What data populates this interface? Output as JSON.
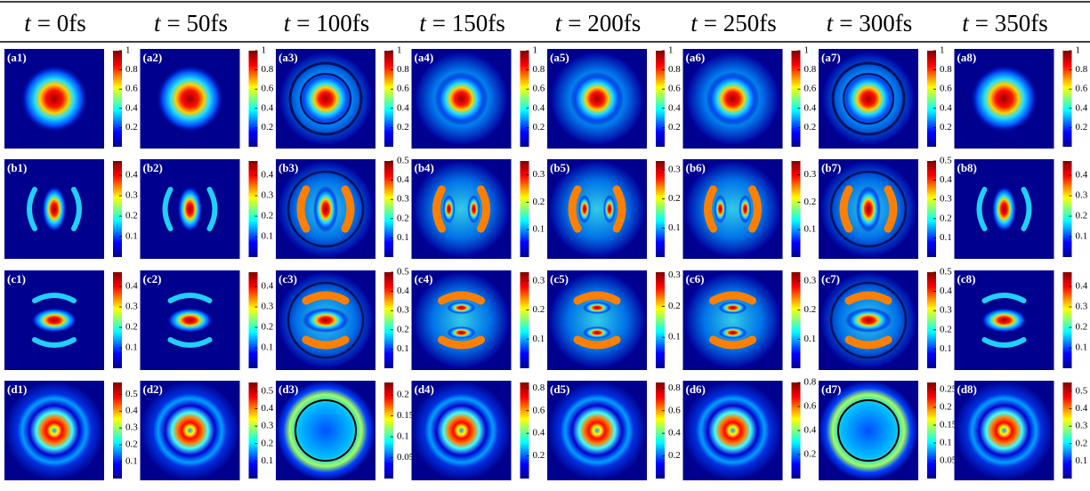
{
  "header": {
    "columns": [
      {
        "symbol": "t",
        "label": "= 0fs"
      },
      {
        "symbol": "t",
        "label": "= 50fs"
      },
      {
        "symbol": "t",
        "label": "= 100fs"
      },
      {
        "symbol": "t",
        "label": "= 150fs"
      },
      {
        "symbol": "t",
        "label": "= 200fs"
      },
      {
        "symbol": "t",
        "label": "= 250fs"
      },
      {
        "symbol": "t",
        "label": "= 300fs"
      },
      {
        "symbol": "t",
        "label": "= 350fs"
      }
    ]
  },
  "rows": [
    {
      "panels": [
        {
          "label": "(a1)",
          "colorbar": {
            "clim": [
              0,
              1
            ],
            "ticks": [
              0.2,
              0.4,
              0.6,
              0.8,
              1
            ]
          }
        },
        {
          "label": "(a2)",
          "colorbar": {
            "clim": [
              0,
              1
            ],
            "ticks": [
              0.2,
              0.4,
              0.6,
              0.8,
              1
            ]
          }
        },
        {
          "label": "(a3)",
          "colorbar": {
            "clim": [
              0,
              1
            ],
            "ticks": [
              0.2,
              0.4,
              0.6,
              0.8,
              1
            ]
          }
        },
        {
          "label": "(a4)",
          "colorbar": {
            "clim": [
              0,
              1
            ],
            "ticks": [
              0.2,
              0.4,
              0.6,
              0.8,
              1
            ]
          }
        },
        {
          "label": "(a5)",
          "colorbar": {
            "clim": [
              0,
              1
            ],
            "ticks": [
              0.2,
              0.4,
              0.6,
              0.8,
              1
            ]
          }
        },
        {
          "label": "(a6)",
          "colorbar": {
            "clim": [
              0,
              1
            ],
            "ticks": [
              0.2,
              0.4,
              0.6,
              0.8,
              1
            ]
          }
        },
        {
          "label": "(a7)",
          "colorbar": {
            "clim": [
              0,
              1
            ],
            "ticks": [
              0.2,
              0.4,
              0.6,
              0.8,
              1
            ]
          }
        },
        {
          "label": "(a8)",
          "colorbar": {
            "clim": [
              0,
              1
            ],
            "ticks": [
              0.2,
              0.4,
              0.6,
              0.8,
              1
            ]
          }
        }
      ]
    },
    {
      "panels": [
        {
          "label": "(b1)",
          "colorbar": {
            "clim": [
              0,
              0.47
            ],
            "ticks": [
              0.1,
              0.2,
              0.3,
              0.4
            ]
          }
        },
        {
          "label": "(b2)",
          "colorbar": {
            "clim": [
              0,
              0.47
            ],
            "ticks": [
              0.1,
              0.2,
              0.3,
              0.4
            ]
          }
        },
        {
          "label": "(b3)",
          "colorbar": {
            "clim": [
              0,
              0.5
            ],
            "ticks": [
              0.1,
              0.2,
              0.3,
              0.4,
              0.5
            ]
          }
        },
        {
          "label": "(b4)",
          "colorbar": {
            "clim": [
              0,
              0.35
            ],
            "ticks": [
              0.1,
              0.2,
              0.3
            ]
          }
        },
        {
          "label": "(b5)",
          "colorbar": {
            "clim": [
              0,
              0.33
            ],
            "ticks": [
              0.1,
              0.2,
              0.3
            ]
          }
        },
        {
          "label": "(b6)",
          "colorbar": {
            "clim": [
              0,
              0.35
            ],
            "ticks": [
              0.1,
              0.2,
              0.3
            ]
          }
        },
        {
          "label": "(b7)",
          "colorbar": {
            "clim": [
              0,
              0.5
            ],
            "ticks": [
              0.1,
              0.2,
              0.3,
              0.4,
              0.5
            ]
          }
        },
        {
          "label": "(b8)",
          "colorbar": {
            "clim": [
              0,
              0.47
            ],
            "ticks": [
              0.1,
              0.2,
              0.3,
              0.4
            ]
          }
        }
      ]
    },
    {
      "panels": [
        {
          "label": "(c1)",
          "colorbar": {
            "clim": [
              0,
              0.47
            ],
            "ticks": [
              0.1,
              0.2,
              0.3,
              0.4
            ]
          }
        },
        {
          "label": "(c2)",
          "colorbar": {
            "clim": [
              0,
              0.47
            ],
            "ticks": [
              0.1,
              0.2,
              0.3,
              0.4
            ]
          }
        },
        {
          "label": "(c3)",
          "colorbar": {
            "clim": [
              0,
              0.5
            ],
            "ticks": [
              0.1,
              0.2,
              0.3,
              0.4,
              0.5
            ]
          }
        },
        {
          "label": "(c4)",
          "colorbar": {
            "clim": [
              0,
              0.33
            ],
            "ticks": [
              0.1,
              0.2,
              0.3
            ]
          }
        },
        {
          "label": "(c5)",
          "colorbar": {
            "clim": [
              0,
              0.31
            ],
            "ticks": [
              0.1,
              0.2,
              0.3
            ]
          }
        },
        {
          "label": "(c6)",
          "colorbar": {
            "clim": [
              0,
              0.33
            ],
            "ticks": [
              0.1,
              0.2,
              0.3
            ]
          }
        },
        {
          "label": "(c7)",
          "colorbar": {
            "clim": [
              0,
              0.5
            ],
            "ticks": [
              0.1,
              0.2,
              0.3,
              0.4,
              0.5
            ]
          }
        },
        {
          "label": "(c8)",
          "colorbar": {
            "clim": [
              0,
              0.47
            ],
            "ticks": [
              0.1,
              0.2,
              0.3,
              0.4
            ]
          }
        }
      ]
    },
    {
      "panels": [
        {
          "label": "(d1)",
          "colorbar": {
            "clim": [
              0,
              0.57
            ],
            "ticks": [
              0.1,
              0.2,
              0.3,
              0.4,
              0.5
            ]
          }
        },
        {
          "label": "(d2)",
          "colorbar": {
            "clim": [
              0,
              0.55
            ],
            "ticks": [
              0.1,
              0.2,
              0.3,
              0.4,
              0.5
            ]
          }
        },
        {
          "label": "(d3)",
          "colorbar": {
            "clim": [
              0,
              0.23
            ],
            "ticks": [
              0.05,
              0.1,
              0.15,
              0.2
            ]
          }
        },
        {
          "label": "(d4)",
          "colorbar": {
            "clim": [
              0,
              0.85
            ],
            "ticks": [
              0.2,
              0.4,
              0.6,
              0.8
            ]
          }
        },
        {
          "label": "(d5)",
          "colorbar": {
            "clim": [
              0,
              0.85
            ],
            "ticks": [
              0.2,
              0.4,
              0.6,
              0.8
            ]
          }
        },
        {
          "label": "(d6)",
          "colorbar": {
            "clim": [
              0,
              0.8
            ],
            "ticks": [
              0.2,
              0.4,
              0.6,
              0.8
            ]
          }
        },
        {
          "label": "(d7)",
          "colorbar": {
            "clim": [
              0,
              0.27
            ],
            "ticks": [
              0.05,
              0.1,
              0.15,
              0.2,
              0.25
            ]
          }
        },
        {
          "label": "(d8)",
          "colorbar": {
            "clim": [
              0,
              0.55
            ],
            "ticks": [
              0.1,
              0.2,
              0.3,
              0.4,
              0.5
            ]
          }
        }
      ]
    }
  ]
}
